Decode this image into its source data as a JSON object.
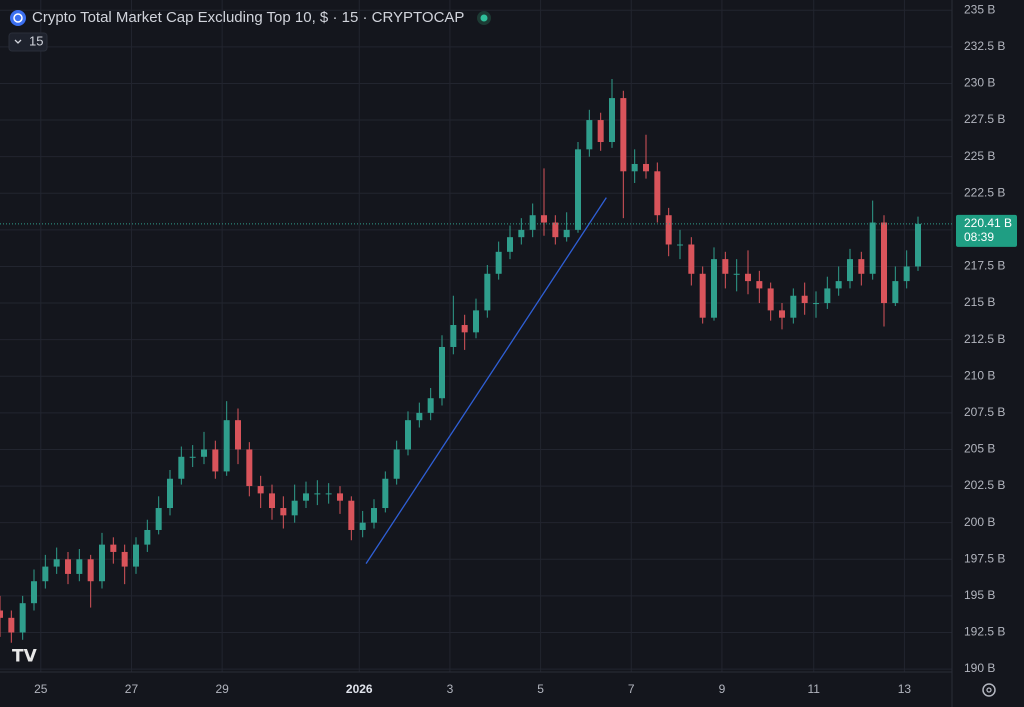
{
  "chart_data": {
    "type": "candlestick",
    "title": "Crypto Total Market Cap Excluding Top 10, $ · 15 · CRYPTOCAP",
    "interval": "15",
    "up_color": "#2f9e8c",
    "down_color": "#d9545b",
    "open": [
      194,
      193.5,
      192.5,
      194.5,
      196,
      197,
      197.5,
      196.5,
      197.5,
      196,
      198.5,
      198,
      197,
      198.5,
      199.5,
      201,
      203,
      204.5,
      204.5,
      205,
      203.5,
      207,
      205,
      202.5,
      202,
      201,
      200.5,
      201.5,
      202,
      202,
      202,
      201.5,
      199.5,
      200,
      201,
      203,
      205,
      207,
      207.5,
      208.5,
      212,
      213.5,
      213,
      214.5,
      217,
      218.5,
      219.5,
      220,
      221,
      220.5,
      219.5,
      220,
      225.5,
      227.5,
      226,
      229,
      224,
      224.5,
      224,
      221,
      219,
      219,
      217,
      214,
      218,
      217,
      217,
      216.5,
      216,
      214.5,
      214,
      215.5,
      215,
      215,
      216,
      216.5,
      218,
      217,
      220.5,
      215,
      216.5,
      217.5
    ],
    "high": [
      195,
      194,
      195,
      196.8,
      197.8,
      198.3,
      198,
      198.2,
      197.8,
      199.3,
      199,
      198.5,
      199,
      200.2,
      201.8,
      203.6,
      205.2,
      205.3,
      206.2,
      205.6,
      208.3,
      207.8,
      205.5,
      203.2,
      202.6,
      201.8,
      202.6,
      202.8,
      202.9,
      202.7,
      202.5,
      201.8,
      200.8,
      201.6,
      203.5,
      205.6,
      207.6,
      208.2,
      209.2,
      212.8,
      215.5,
      214.2,
      215.3,
      217.6,
      219.2,
      220.3,
      220.8,
      221.8,
      224.2,
      221,
      221.2,
      226,
      228.2,
      228,
      230.3,
      229.5,
      225.5,
      226.5,
      224.6,
      221.5,
      220,
      219.5,
      217.5,
      218.8,
      218.5,
      218,
      218.6,
      217.2,
      216.4,
      215,
      216,
      216.4,
      215.8,
      216.8,
      217.5,
      218.7,
      218.5,
      222,
      221,
      217.5,
      218.6,
      220.9
    ],
    "low": [
      192.2,
      191.8,
      192,
      194,
      195.5,
      196.5,
      195.8,
      196,
      194.2,
      195.5,
      197.2,
      195.8,
      196.5,
      198,
      199.2,
      200.5,
      202.6,
      203.8,
      204,
      203,
      203.2,
      204,
      201.8,
      201,
      200.2,
      199.6,
      200,
      201,
      201.2,
      201.3,
      200.6,
      198.8,
      199,
      199.6,
      200.7,
      202.6,
      204.6,
      206.5,
      207,
      208,
      211.5,
      211.8,
      212.6,
      214,
      216.6,
      218,
      219,
      219.5,
      219.6,
      219,
      219.2,
      219.8,
      225,
      225.4,
      225.6,
      220.8,
      223.2,
      223.5,
      220.5,
      218.2,
      218,
      216.2,
      213.6,
      213.8,
      216,
      215.8,
      215.6,
      215,
      213.8,
      213.2,
      213.6,
      214.2,
      214,
      214.6,
      215.5,
      216,
      216.2,
      216.6,
      213.4,
      214.8,
      216,
      217.2
    ],
    "close": [
      193.5,
      192.5,
      194.5,
      196,
      197,
      197.5,
      196.5,
      197.5,
      196,
      198.5,
      198,
      197,
      198.5,
      199.5,
      201,
      203,
      204.5,
      204.5,
      205,
      203.5,
      207,
      205,
      202.5,
      202,
      201,
      200.5,
      201.5,
      202,
      202,
      202,
      201.5,
      199.5,
      200,
      201,
      203,
      205,
      207,
      207.5,
      208.5,
      212,
      213.5,
      213,
      214.5,
      217,
      218.5,
      219.5,
      220,
      221,
      220.5,
      219.5,
      220,
      225.5,
      227.5,
      226,
      229,
      224,
      224.5,
      224,
      221,
      219,
      219,
      217,
      214,
      218,
      217,
      217,
      216.5,
      216,
      214.5,
      214,
      215.5,
      215,
      215,
      216,
      216.5,
      218,
      217,
      220.5,
      215,
      216.5,
      217.5,
      220.41
    ],
    "xlim": [
      0,
      84
    ],
    "xticks": [
      {
        "value": 3.6,
        "label": "25"
      },
      {
        "value": 11.6,
        "label": "27"
      },
      {
        "value": 19.6,
        "label": "29"
      },
      {
        "value": 31.7,
        "label": "2026"
      },
      {
        "value": 39.7,
        "label": "3"
      },
      {
        "value": 47.7,
        "label": "5"
      },
      {
        "value": 55.7,
        "label": "7"
      },
      {
        "value": 63.7,
        "label": "9"
      },
      {
        "value": 71.8,
        "label": "11"
      },
      {
        "value": 79.8,
        "label": "13"
      }
    ],
    "ylim": [
      189.8,
      235.7
    ],
    "yticks": [
      {
        "value": 190,
        "label": "190 B"
      },
      {
        "value": 192.5,
        "label": "192.5 B"
      },
      {
        "value": 195,
        "label": "195 B"
      },
      {
        "value": 197.5,
        "label": "197.5 B"
      },
      {
        "value": 200,
        "label": "200 B"
      },
      {
        "value": 202.5,
        "label": "202.5 B"
      },
      {
        "value": 205,
        "label": "205 B"
      },
      {
        "value": 207.5,
        "label": "207.5 B"
      },
      {
        "value": 210,
        "label": "210 B"
      },
      {
        "value": 212.5,
        "label": "212.5 B"
      },
      {
        "value": 215,
        "label": "215 B"
      },
      {
        "value": 217.5,
        "label": "217.5 B"
      },
      {
        "value": 220,
        "label": "220 B"
      },
      {
        "value": 222.5,
        "label": "222.5 B"
      },
      {
        "value": 225,
        "label": "225 B"
      },
      {
        "value": 227.5,
        "label": "227.5 B"
      },
      {
        "value": 230,
        "label": "230 B"
      },
      {
        "value": 232.5,
        "label": "232.5 B"
      },
      {
        "value": 235,
        "label": "235 B"
      }
    ],
    "grid": true,
    "last_price": {
      "value": 220.41,
      "label": "220.41 B"
    },
    "countdown": "08:39",
    "trendline": {
      "x": [
        32.3,
        53.5
      ],
      "y": [
        197.2,
        222.2
      ],
      "color": "#2f5fd6"
    }
  }
}
